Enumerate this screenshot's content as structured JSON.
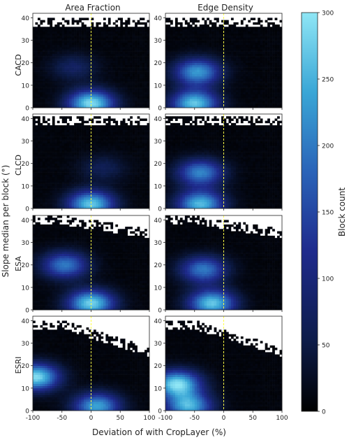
{
  "chart_data": {
    "type": "heatmap",
    "layout": "4x2 grid of 2D histograms with shared colorbar",
    "column_titles": [
      "Area Fraction",
      "Edge Density"
    ],
    "row_labels": [
      "CACD",
      "CLCD",
      "ESA",
      "ESRI"
    ],
    "xlabel": "Deviation of with CropLayer (%)",
    "ylabel": "Slope median per block (°)",
    "xlim": [
      -100,
      100
    ],
    "ylim": [
      0,
      42
    ],
    "xticks": [
      -100,
      -50,
      0,
      50,
      100
    ],
    "yticks": [
      0,
      10,
      20,
      30,
      40
    ],
    "reference_line_x": 0,
    "reference_line_color": "#ffff44",
    "colorbar": {
      "label": "Block count",
      "min": 0,
      "max": 300,
      "ticks": [
        0,
        50,
        100,
        150,
        200,
        250,
        300
      ],
      "colormap": [
        "#000000",
        "#0d1c4a",
        "#1e2a8c",
        "#2a63b8",
        "#3aa6d6",
        "#8fe6f5"
      ]
    },
    "panels": [
      {
        "row": "CACD",
        "metric": "Area Fraction",
        "dense_band_top_y": 36,
        "hotspots": [
          {
            "x": 0,
            "y": 2,
            "count": 280
          },
          {
            "x": -30,
            "y": 18,
            "count": 70
          }
        ]
      },
      {
        "row": "CACD",
        "metric": "Edge Density",
        "dense_band_top_y": 36,
        "hotspots": [
          {
            "x": -45,
            "y": 16,
            "count": 220
          },
          {
            "x": -50,
            "y": 2,
            "count": 260
          }
        ]
      },
      {
        "row": "CLCD",
        "metric": "Area Fraction",
        "dense_band_top_y": 37,
        "hotspots": [
          {
            "x": 0,
            "y": 2,
            "count": 260
          },
          {
            "x": 20,
            "y": 18,
            "count": 60
          }
        ]
      },
      {
        "row": "CLCD",
        "metric": "Edge Density",
        "dense_band_top_y": 37,
        "hotspots": [
          {
            "x": -40,
            "y": 16,
            "count": 200
          },
          {
            "x": -40,
            "y": 2,
            "count": 250
          }
        ]
      },
      {
        "row": "ESA",
        "metric": "Area Fraction",
        "dense_band_top_y": 38,
        "hotspots": [
          {
            "x": -45,
            "y": 20,
            "count": 190
          },
          {
            "x": 0,
            "y": 3,
            "count": 270
          }
        ]
      },
      {
        "row": "ESA",
        "metric": "Edge Density",
        "dense_band_top_y": 38,
        "hotspots": [
          {
            "x": -35,
            "y": 18,
            "count": 190
          },
          {
            "x": -20,
            "y": 3,
            "count": 260
          }
        ]
      },
      {
        "row": "ESRI",
        "metric": "Area Fraction",
        "dense_band_top_y": 36,
        "hotspots": [
          {
            "x": -95,
            "y": 15,
            "count": 280
          },
          {
            "x": 10,
            "y": 2,
            "count": 230
          }
        ]
      },
      {
        "row": "ESRI",
        "metric": "Edge Density",
        "dense_band_top_y": 36,
        "hotspots": [
          {
            "x": -80,
            "y": 12,
            "count": 280
          },
          {
            "x": -60,
            "y": 2,
            "count": 240
          }
        ]
      }
    ]
  }
}
